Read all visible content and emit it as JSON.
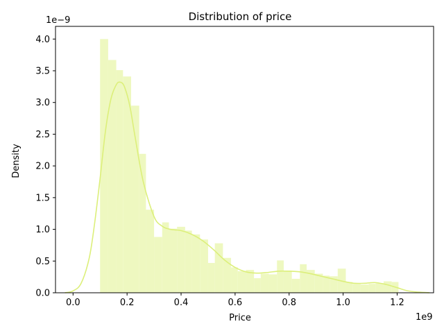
{
  "chart_data": {
    "type": "histogram",
    "title": "Distribution of price",
    "xlabel": "Price",
    "ylabel": "Density",
    "x_offset_label": "1e9",
    "y_offset_label": "1e−9",
    "x_scale": 1000000000.0,
    "y_scale": 1e-09,
    "xlim": [
      -0.065,
      1.335
    ],
    "ylim": [
      0,
      4.2
    ],
    "x_ticks": [
      0.0,
      0.2,
      0.4,
      0.6,
      0.8,
      1.0,
      1.2
    ],
    "x_tick_labels": [
      "0.0",
      "0.2",
      "0.4",
      "0.6",
      "0.8",
      "1.0",
      "1.2"
    ],
    "y_ticks": [
      0.0,
      0.5,
      1.0,
      1.5,
      2.0,
      2.5,
      3.0,
      3.5,
      4.0
    ],
    "y_tick_labels": [
      "0.0",
      "0.5",
      "1.0",
      "1.5",
      "2.0",
      "2.5",
      "3.0",
      "3.5",
      "4.0"
    ],
    "grid": false,
    "color": "#dcef7a",
    "bar_color": "#eef8c0",
    "bins": [
      {
        "x0": 0.1,
        "x1": 0.13,
        "density": 4.0
      },
      {
        "x0": 0.13,
        "x1": 0.16,
        "density": 3.67
      },
      {
        "x0": 0.16,
        "x1": 0.185,
        "density": 3.51
      },
      {
        "x0": 0.185,
        "x1": 0.215,
        "density": 3.41
      },
      {
        "x0": 0.215,
        "x1": 0.245,
        "density": 2.95
      },
      {
        "x0": 0.245,
        "x1": 0.27,
        "density": 2.19
      },
      {
        "x0": 0.27,
        "x1": 0.3,
        "density": 1.31
      },
      {
        "x0": 0.3,
        "x1": 0.33,
        "density": 0.88
      },
      {
        "x0": 0.33,
        "x1": 0.355,
        "density": 1.11
      },
      {
        "x0": 0.355,
        "x1": 0.385,
        "density": 1.01
      },
      {
        "x0": 0.385,
        "x1": 0.415,
        "density": 1.04
      },
      {
        "x0": 0.415,
        "x1": 0.44,
        "density": 0.98
      },
      {
        "x0": 0.44,
        "x1": 0.47,
        "density": 0.92
      },
      {
        "x0": 0.47,
        "x1": 0.5,
        "density": 0.84
      },
      {
        "x0": 0.5,
        "x1": 0.525,
        "density": 0.47
      },
      {
        "x0": 0.525,
        "x1": 0.555,
        "density": 0.78
      },
      {
        "x0": 0.555,
        "x1": 0.585,
        "density": 0.55
      },
      {
        "x0": 0.585,
        "x1": 0.61,
        "density": 0.4
      },
      {
        "x0": 0.61,
        "x1": 0.64,
        "density": 0.34
      },
      {
        "x0": 0.64,
        "x1": 0.67,
        "density": 0.36
      },
      {
        "x0": 0.67,
        "x1": 0.695,
        "density": 0.23
      },
      {
        "x0": 0.695,
        "x1": 0.725,
        "density": 0.3
      },
      {
        "x0": 0.725,
        "x1": 0.755,
        "density": 0.29
      },
      {
        "x0": 0.755,
        "x1": 0.78,
        "density": 0.51
      },
      {
        "x0": 0.78,
        "x1": 0.81,
        "density": 0.35
      },
      {
        "x0": 0.81,
        "x1": 0.84,
        "density": 0.22
      },
      {
        "x0": 0.84,
        "x1": 0.865,
        "density": 0.45
      },
      {
        "x0": 0.865,
        "x1": 0.895,
        "density": 0.36
      },
      {
        "x0": 0.895,
        "x1": 0.925,
        "density": 0.3
      },
      {
        "x0": 0.925,
        "x1": 0.95,
        "density": 0.27
      },
      {
        "x0": 0.95,
        "x1": 0.98,
        "density": 0.26
      },
      {
        "x0": 0.98,
        "x1": 1.01,
        "density": 0.38
      },
      {
        "x0": 1.01,
        "x1": 1.035,
        "density": 0.17
      },
      {
        "x0": 1.035,
        "x1": 1.065,
        "density": 0.14
      },
      {
        "x0": 1.065,
        "x1": 1.095,
        "density": 0.13
      },
      {
        "x0": 1.095,
        "x1": 1.12,
        "density": 0.14
      },
      {
        "x0": 1.12,
        "x1": 1.15,
        "density": 0.15
      },
      {
        "x0": 1.15,
        "x1": 1.18,
        "density": 0.18
      },
      {
        "x0": 1.18,
        "x1": 1.205,
        "density": 0.17
      }
    ],
    "kde": {
      "x": [
        -0.03,
        0.0,
        0.03,
        0.06,
        0.08,
        0.1,
        0.12,
        0.14,
        0.16,
        0.175,
        0.19,
        0.21,
        0.23,
        0.26,
        0.3,
        0.33,
        0.36,
        0.4,
        0.44,
        0.48,
        0.52,
        0.56,
        0.6,
        0.64,
        0.68,
        0.72,
        0.76,
        0.8,
        0.84,
        0.88,
        0.92,
        0.96,
        1.0,
        1.04,
        1.08,
        1.12,
        1.16,
        1.2,
        1.24,
        1.28,
        1.32
      ],
      "y": [
        0.0,
        0.03,
        0.15,
        0.55,
        1.1,
        1.8,
        2.55,
        3.05,
        3.28,
        3.32,
        3.25,
        2.95,
        2.45,
        1.75,
        1.2,
        1.05,
        1.0,
        0.98,
        0.92,
        0.82,
        0.68,
        0.52,
        0.4,
        0.33,
        0.31,
        0.32,
        0.34,
        0.34,
        0.33,
        0.3,
        0.26,
        0.22,
        0.18,
        0.15,
        0.15,
        0.16,
        0.13,
        0.08,
        0.03,
        0.01,
        0.0
      ]
    }
  }
}
